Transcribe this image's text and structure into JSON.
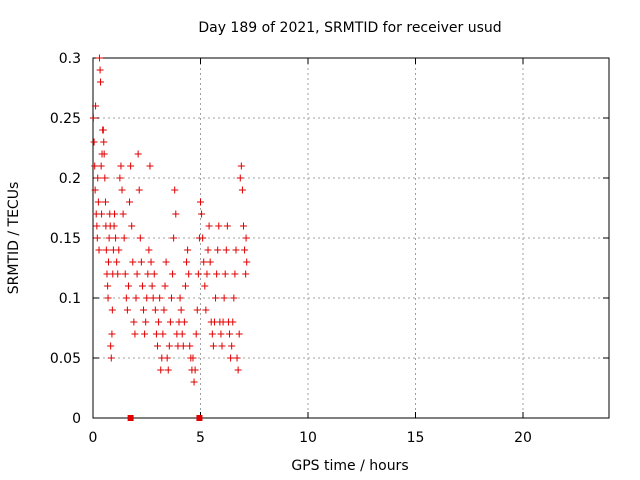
{
  "chart_data": {
    "type": "scatter",
    "title": "Day 189 of 2021, SRMTID for receiver usud",
    "xlabel": "GPS time / hours",
    "ylabel": "SRMTID / TECUs",
    "xlim": [
      0,
      24
    ],
    "ylim": [
      0,
      0.3
    ],
    "xticks": [
      "0",
      "5",
      "10",
      "15",
      "20"
    ],
    "yticks": [
      "0",
      "0.05",
      "0.1",
      "0.15",
      "0.2",
      "0.25",
      "0.3"
    ],
    "grid": true,
    "marker": "+",
    "color": "#e00000",
    "series": [
      {
        "points": [
          [
            0.02,
            0.25
          ],
          [
            0.05,
            0.23
          ],
          [
            0.08,
            0.21
          ],
          [
            0.1,
            0.19
          ],
          [
            0.12,
            0.26
          ],
          [
            0.15,
            0.17
          ],
          [
            0.18,
            0.16
          ],
          [
            0.2,
            0.15
          ],
          [
            0.22,
            0.2
          ],
          [
            0.25,
            0.18
          ],
          [
            0.28,
            0.14
          ],
          [
            0.3,
            0.3
          ],
          [
            0.33,
            0.29
          ],
          [
            0.35,
            0.28
          ],
          [
            0.38,
            0.21
          ],
          [
            0.4,
            0.17
          ],
          [
            0.42,
            0.22
          ],
          [
            0.45,
            0.24
          ],
          [
            0.48,
            0.24
          ],
          [
            0.5,
            0.23
          ],
          [
            0.52,
            0.22
          ],
          [
            0.55,
            0.2
          ],
          [
            0.58,
            0.18
          ],
          [
            0.6,
            0.16
          ],
          [
            0.62,
            0.14
          ],
          [
            0.65,
            0.12
          ],
          [
            0.68,
            0.11
          ],
          [
            0.7,
            0.1
          ],
          [
            0.72,
            0.13
          ],
          [
            0.75,
            0.15
          ],
          [
            0.78,
            0.17
          ],
          [
            0.8,
            0.16
          ],
          [
            0.82,
            0.06
          ],
          [
            0.85,
            0.05
          ],
          [
            0.88,
            0.07
          ],
          [
            0.9,
            0.09
          ],
          [
            0.92,
            0.12
          ],
          [
            0.95,
            0.14
          ],
          [
            0.98,
            0.16
          ],
          [
            1.0,
            0.17
          ],
          [
            1.05,
            0.15
          ],
          [
            1.1,
            0.13
          ],
          [
            1.15,
            0.12
          ],
          [
            1.2,
            0.14
          ],
          [
            1.25,
            0.2
          ],
          [
            1.3,
            0.21
          ],
          [
            1.35,
            0.19
          ],
          [
            1.4,
            0.17
          ],
          [
            1.45,
            0.15
          ],
          [
            1.5,
            0.12
          ],
          [
            1.55,
            0.1
          ],
          [
            1.6,
            0.09
          ],
          [
            1.65,
            0.11
          ],
          [
            1.7,
            0.18
          ],
          [
            1.75,
            0.21
          ],
          [
            1.8,
            0.16
          ],
          [
            1.85,
            0.13
          ],
          [
            1.9,
            0.08
          ],
          [
            1.95,
            0.07
          ],
          [
            2.0,
            0.1
          ],
          [
            2.05,
            0.12
          ],
          [
            2.1,
            0.22
          ],
          [
            2.15,
            0.19
          ],
          [
            2.2,
            0.15
          ],
          [
            2.25,
            0.13
          ],
          [
            2.3,
            0.11
          ],
          [
            2.35,
            0.09
          ],
          [
            2.4,
            0.07
          ],
          [
            2.45,
            0.08
          ],
          [
            2.5,
            0.1
          ],
          [
            2.55,
            0.12
          ],
          [
            2.6,
            0.14
          ],
          [
            2.65,
            0.21
          ],
          [
            2.7,
            0.13
          ],
          [
            2.75,
            0.11
          ],
          [
            2.8,
            0.1
          ],
          [
            2.85,
            0.12
          ],
          [
            2.9,
            0.09
          ],
          [
            2.95,
            0.07
          ],
          [
            3.0,
            0.06
          ],
          [
            3.05,
            0.08
          ],
          [
            3.1,
            0.1
          ],
          [
            3.15,
            0.04
          ],
          [
            3.2,
            0.05
          ],
          [
            3.25,
            0.07
          ],
          [
            3.3,
            0.09
          ],
          [
            3.35,
            0.11
          ],
          [
            3.4,
            0.13
          ],
          [
            3.45,
            0.05
          ],
          [
            3.5,
            0.04
          ],
          [
            3.55,
            0.06
          ],
          [
            3.6,
            0.08
          ],
          [
            3.65,
            0.1
          ],
          [
            3.7,
            0.12
          ],
          [
            3.75,
            0.15
          ],
          [
            3.8,
            0.19
          ],
          [
            3.85,
            0.17
          ],
          [
            3.9,
            0.07
          ],
          [
            3.95,
            0.06
          ],
          [
            4.0,
            0.08
          ],
          [
            4.05,
            0.1
          ],
          [
            4.1,
            0.09
          ],
          [
            4.15,
            0.07
          ],
          [
            4.2,
            0.06
          ],
          [
            4.25,
            0.08
          ],
          [
            4.3,
            0.11
          ],
          [
            4.35,
            0.13
          ],
          [
            4.4,
            0.14
          ],
          [
            4.45,
            0.12
          ],
          [
            4.5,
            0.06
          ],
          [
            4.55,
            0.05
          ],
          [
            4.6,
            0.04
          ],
          [
            4.65,
            0.05
          ],
          [
            4.7,
            0.03
          ],
          [
            4.75,
            0.04
          ],
          [
            4.8,
            0.07
          ],
          [
            4.85,
            0.09
          ],
          [
            4.9,
            0.12
          ],
          [
            4.95,
            0.15
          ],
          [
            5.0,
            0.18
          ],
          [
            5.05,
            0.17
          ],
          [
            5.1,
            0.15
          ],
          [
            5.15,
            0.13
          ],
          [
            5.2,
            0.11
          ],
          [
            5.25,
            0.09
          ],
          [
            5.3,
            0.12
          ],
          [
            5.35,
            0.14
          ],
          [
            5.4,
            0.16
          ],
          [
            5.45,
            0.13
          ],
          [
            5.5,
            0.08
          ],
          [
            5.55,
            0.07
          ],
          [
            5.6,
            0.06
          ],
          [
            5.65,
            0.08
          ],
          [
            5.7,
            0.1
          ],
          [
            5.75,
            0.12
          ],
          [
            5.8,
            0.14
          ],
          [
            5.85,
            0.16
          ],
          [
            5.9,
            0.08
          ],
          [
            5.95,
            0.07
          ],
          [
            6.0,
            0.06
          ],
          [
            6.05,
            0.08
          ],
          [
            6.1,
            0.1
          ],
          [
            6.15,
            0.12
          ],
          [
            6.2,
            0.14
          ],
          [
            6.25,
            0.16
          ],
          [
            6.3,
            0.08
          ],
          [
            6.35,
            0.07
          ],
          [
            6.4,
            0.05
          ],
          [
            6.45,
            0.06
          ],
          [
            6.5,
            0.08
          ],
          [
            6.55,
            0.1
          ],
          [
            6.6,
            0.12
          ],
          [
            6.65,
            0.14
          ],
          [
            6.7,
            0.05
          ],
          [
            6.75,
            0.04
          ],
          [
            6.8,
            0.07
          ],
          [
            6.85,
            0.2
          ],
          [
            6.9,
            0.21
          ],
          [
            6.95,
            0.19
          ],
          [
            7.0,
            0.16
          ],
          [
            7.05,
            0.14
          ],
          [
            7.1,
            0.12
          ],
          [
            7.12,
            0.15
          ],
          [
            7.15,
            0.13
          ]
        ],
        "zero_points": [
          1.75,
          4.95
        ]
      }
    ]
  }
}
